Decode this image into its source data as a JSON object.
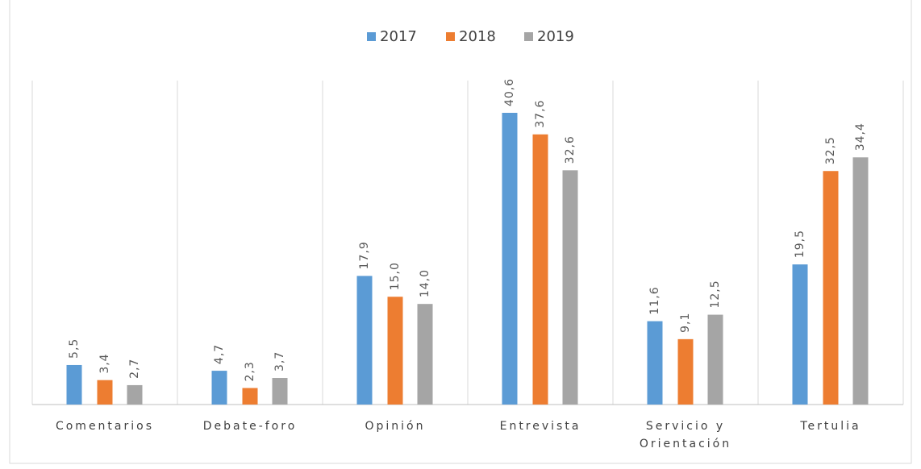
{
  "chart_data": {
    "type": "bar",
    "categories": [
      "Comentarios",
      "Debate-foro",
      "Opinión",
      "Entrevista",
      "Servicio y Orientación",
      "Tertulia"
    ],
    "series": [
      {
        "name": "2017",
        "color": "#5b9bd5",
        "values": [
          5.5,
          4.7,
          17.9,
          40.6,
          11.6,
          19.5
        ],
        "value_labels": [
          "5,5",
          "4,7",
          "17,9",
          "40,6",
          "11,6",
          "19,5"
        ]
      },
      {
        "name": "2018",
        "color": "#ed7d31",
        "values": [
          3.4,
          2.3,
          15.0,
          37.6,
          9.1,
          32.5
        ],
        "value_labels": [
          "3,4",
          "2,3",
          "15,0",
          "37,6",
          "9,1",
          "32,5"
        ]
      },
      {
        "name": "2019",
        "color": "#a5a5a5",
        "values": [
          2.7,
          3.7,
          14.0,
          32.6,
          12.5,
          34.4
        ],
        "value_labels": [
          "2,7",
          "3,7",
          "14,0",
          "32,6",
          "12,5",
          "34,4"
        ]
      }
    ],
    "legend": "top"
  }
}
